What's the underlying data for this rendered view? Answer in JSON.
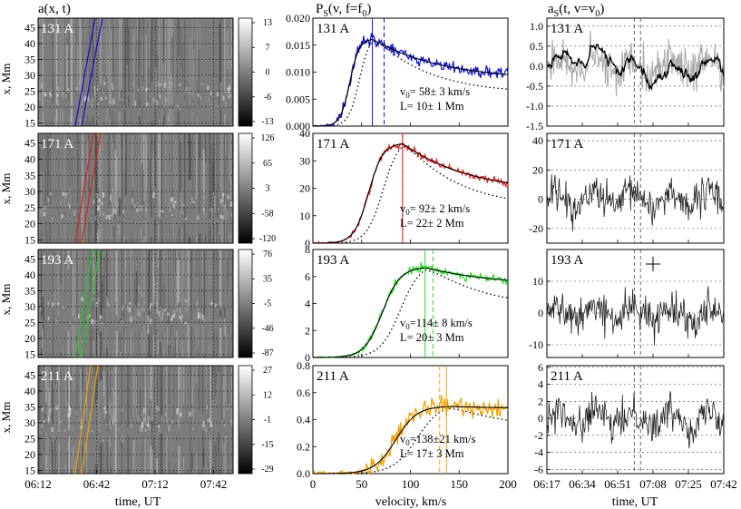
{
  "figure": {
    "col_titles": {
      "left": "a(x, t)",
      "middle_prefix": "P",
      "middle_sub": "S",
      "middle_suffix": "(v, f=f",
      "middle_sub0": "0",
      "middle_close": ")",
      "right_prefix": "a",
      "right_sub": "S",
      "right_suffix": "(t, v=v",
      "right_sub0": "0",
      "right_close": ")"
    },
    "x_labels": {
      "left": "time, UT",
      "middle": "velocity, km/s",
      "right": "time, UT"
    },
    "y_label_left": "x, Mm"
  },
  "chart_data": [
    {
      "panel": "time-distance maps",
      "type": "heatmap",
      "xlabel": "time, UT",
      "ylabel": "x, Mm",
      "x_ticks": [
        "06:12",
        "06:42",
        "07:12",
        "07:42"
      ],
      "y_ticks": [
        15,
        20,
        25,
        30,
        35,
        40,
        45
      ],
      "ylim": [
        14,
        48
      ],
      "rows": [
        {
          "channel": "131 A",
          "colorbar_ticks": [
            "13",
            "7",
            "0",
            "-6",
            "-13"
          ],
          "line_color": "#1010d0"
        },
        {
          "channel": "171 A",
          "colorbar_ticks": [
            "126",
            "65",
            "3",
            "-58",
            "-120"
          ],
          "line_color": "#e02020"
        },
        {
          "channel": "193 A",
          "colorbar_ticks": [
            "76",
            "35",
            "-5",
            "-46",
            "-87"
          ],
          "line_color": "#20d020"
        },
        {
          "channel": "211 A",
          "colorbar_ticks": [
            "27",
            "12",
            "-1",
            "-15",
            "-29"
          ],
          "line_color": "#f0a000"
        }
      ]
    },
    {
      "panel": "velocity power spectra",
      "type": "line",
      "xlabel": "velocity, km/s",
      "x_ticks": [
        0,
        50,
        100,
        150,
        200
      ],
      "xlim": [
        0,
        200
      ],
      "rows": [
        {
          "channel": "131 A",
          "ylim": [
            0,
            0.02
          ],
          "y_ticks": [
            "0.000",
            "0.005",
            "0.010",
            "0.015",
            "0.020"
          ],
          "v0_text": "v0= 58± 3 km/s",
          "L_text": "L= 10± 1 Mm",
          "v_solid": 61,
          "v_dashed": 73,
          "color": "#1010d0",
          "peak": 0.0162,
          "tail": 0.0085,
          "noise": 0.0011
        },
        {
          "channel": "171 A",
          "ylim": [
            0,
            40
          ],
          "y_ticks": [
            "0",
            "10",
            "20",
            "30",
            "40"
          ],
          "v0_text": "v0= 92± 2 km/s",
          "L_text": "L= 22± 2 Mm",
          "v_solid": 92,
          "v_dashed": 92,
          "color": "#e02020",
          "peak": 36.5,
          "tail": 18,
          "noise": 1.2
        },
        {
          "channel": "193 A",
          "ylim": [
            0,
            8
          ],
          "y_ticks": [
            "0",
            "2",
            "4",
            "6",
            "8"
          ],
          "v0_text": "v0=114± 8 km/s",
          "L_text": "L= 20± 3 Mm",
          "v_solid": 115,
          "v_dashed": 123,
          "color": "#22dd22",
          "peak": 6.7,
          "tail": 5.3,
          "noise": 0.3
        },
        {
          "channel": "211 A",
          "ylim": [
            0,
            0.8
          ],
          "y_ticks": [
            "0.0",
            "0.2",
            "0.4",
            "0.6",
            "0.8"
          ],
          "v0_text": "v0=138±21 km/s",
          "L_text": "L= 17± 3 Mm",
          "v_solid": 137,
          "v_dashed": 130,
          "color": "#f0a000",
          "peak": 0.5,
          "tail": 0.48,
          "noise": 0.07
        }
      ]
    },
    {
      "panel": "filtered time series",
      "type": "line",
      "xlabel": "time, UT",
      "x_ticks": [
        "06:17",
        "06:34",
        "06:51",
        "07:08",
        "07:25",
        "07:42"
      ],
      "rows": [
        {
          "channel": "131 A",
          "ylim": [
            -1.5,
            1.2
          ],
          "y_ticks": [
            "-1.5",
            "-1.0",
            "-0.5",
            "0.0",
            "0.5",
            "1.0"
          ]
        },
        {
          "channel": "171 A",
          "ylim": [
            -30,
            45
          ],
          "y_ticks": [
            "-20",
            "0",
            "20",
            "40"
          ]
        },
        {
          "channel": "193 A",
          "ylim": [
            -14,
            20
          ],
          "y_ticks": [
            "-10",
            "0",
            "10"
          ]
        },
        {
          "channel": "211 A",
          "ylim": [
            -6.5,
            6.2
          ],
          "y_ticks": [
            "-6",
            "-4",
            "-2",
            "0",
            "2",
            "4",
            "6"
          ]
        }
      ]
    }
  ]
}
